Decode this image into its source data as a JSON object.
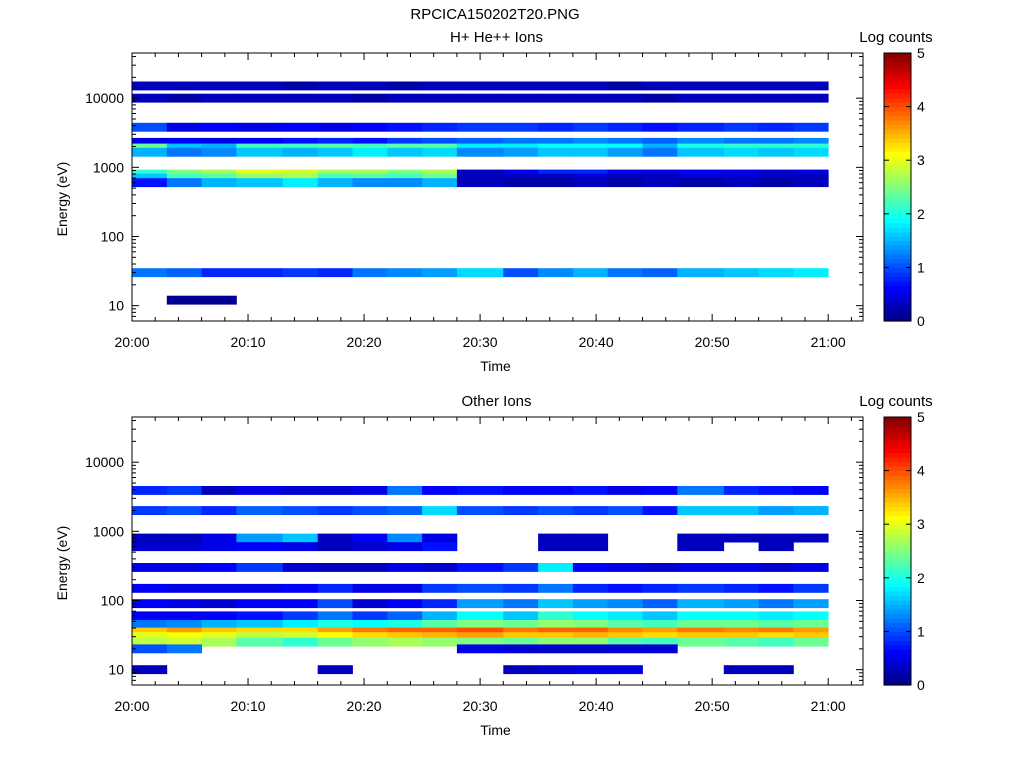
{
  "figure": {
    "file_title": "RPCICA150202T20.PNG",
    "panel_order": [
      "hia",
      "other"
    ]
  },
  "colors": {
    "frame": "#000000",
    "background": "#ffffff",
    "colormap": [
      "#000080",
      "#0000ff",
      "#0080ff",
      "#00ffff",
      "#80ff80",
      "#ffff00",
      "#ff8000",
      "#ff0000",
      "#800000"
    ]
  },
  "chart_data": [
    {
      "id": "hia",
      "type": "heatmap",
      "title": "H+ He++ Ions",
      "xlabel": "Time",
      "ylabel": "Energy (eV)",
      "xscale": "time",
      "yscale": "log",
      "xlim": [
        "20:00",
        "21:03"
      ],
      "ylim": [
        6,
        45000
      ],
      "x_ticks": [
        "20:00",
        "20:10",
        "20:20",
        "20:30",
        "20:40",
        "20:50",
        "21:00"
      ],
      "y_ticks": [
        10,
        100,
        1000,
        10000
      ],
      "y_tick_labels": [
        "10",
        "100",
        "1000",
        "10000"
      ],
      "colorbar": {
        "label": "Log counts",
        "min": 0,
        "max": 5,
        "ticks": [
          0,
          1,
          2,
          3,
          4,
          5
        ]
      },
      "time_bins": [
        "20:00",
        "20:03",
        "20:06",
        "20:09",
        "20:13",
        "20:16",
        "20:19",
        "20:22",
        "20:25",
        "20:28",
        "20:32",
        "20:35",
        "20:38",
        "20:41",
        "20:44",
        "20:47",
        "20:51",
        "20:54",
        "20:57",
        "21:00"
      ],
      "energy_bands_eV": [
        15000,
        10000,
        3800,
        2300,
        1900,
        1650,
        800,
        700,
        600,
        30,
        12
      ],
      "band_values_log_counts": [
        [
          0.3,
          0.3,
          0.3,
          0.3,
          0.2,
          0.3,
          0.3,
          0.2,
          0.3,
          0.3,
          0.3,
          0.3,
          0.3,
          0.2,
          0.3,
          0.3,
          0.3,
          0.3,
          0.3
        ],
        [
          0.3,
          0.2,
          0.3,
          0.3,
          0.3,
          0.3,
          0.2,
          0.3,
          0.3,
          0.3,
          0.3,
          0.3,
          0.3,
          0.3,
          0.2,
          0.3,
          0.3,
          0.3,
          0.3
        ],
        [
          1.0,
          0.5,
          0.6,
          0.5,
          0.6,
          0.5,
          0.6,
          0.7,
          0.8,
          0.9,
          0.9,
          0.8,
          0.9,
          0.8,
          0.7,
          0.8,
          0.9,
          0.8,
          0.9
        ],
        [
          0.5,
          0.6,
          0.5,
          0.6,
          0.7,
          0.8,
          0.7,
          0.9,
          1.0,
          1.1,
          1.2,
          1.2,
          1.3,
          1.2,
          1.1,
          1.3,
          1.2,
          1.2,
          1.3
        ],
        [
          2.4,
          1.6,
          1.5,
          2.2,
          2.2,
          2.3,
          2.2,
          2.3,
          2.3,
          1.8,
          1.8,
          1.9,
          1.9,
          1.9,
          1.5,
          2.0,
          2.1,
          2.1,
          2.1
        ],
        [
          1.5,
          1.2,
          1.3,
          1.6,
          1.5,
          1.6,
          1.8,
          1.6,
          1.7,
          1.3,
          1.4,
          1.6,
          1.6,
          1.4,
          1.2,
          1.6,
          1.7,
          1.6,
          1.7
        ],
        [
          2.1,
          2.5,
          2.7,
          3.0,
          2.9,
          2.7,
          2.7,
          2.5,
          2.7,
          0.3,
          0.6,
          0.8,
          0.8,
          0.6,
          0.5,
          0.6,
          0.5,
          0.4,
          0.5
        ],
        [
          1.6,
          2.2,
          2.3,
          2.6,
          2.7,
          2.2,
          2.3,
          2.2,
          2.4,
          0.3,
          0.3,
          0.3,
          0.4,
          0.3,
          0.3,
          0.4,
          0.4,
          0.3,
          0.3
        ],
        [
          0.7,
          1.2,
          1.5,
          1.6,
          1.8,
          1.5,
          1.3,
          1.3,
          1.5,
          0.3,
          0.2,
          0.2,
          0.3,
          0.2,
          0.3,
          0.2,
          0.3,
          0.2,
          0.3
        ],
        [
          1.2,
          1.1,
          0.8,
          0.8,
          0.9,
          0.8,
          1.2,
          1.3,
          1.4,
          1.7,
          1.0,
          1.3,
          1.5,
          1.2,
          1.1,
          1.5,
          1.6,
          1.7,
          1.8
        ],
        [
          0.0,
          0.1,
          0.1,
          0.0,
          0.0,
          0.0,
          0.0,
          0.0,
          0.0,
          0.0,
          0.0,
          0.0,
          0.0,
          0.0,
          0.0,
          0.0,
          0.0,
          0.0,
          0.0
        ]
      ]
    },
    {
      "id": "other",
      "type": "heatmap",
      "title": "Other Ions",
      "xlabel": "Time",
      "ylabel": "Energy (eV)",
      "xscale": "time",
      "yscale": "log",
      "xlim": [
        "20:00",
        "21:03"
      ],
      "ylim": [
        6,
        45000
      ],
      "x_ticks": [
        "20:00",
        "20:10",
        "20:20",
        "20:30",
        "20:40",
        "20:50",
        "21:00"
      ],
      "y_ticks": [
        10,
        100,
        1000,
        10000
      ],
      "y_tick_labels": [
        "10",
        "100",
        "1000",
        "10000"
      ],
      "colorbar": {
        "label": "Log counts",
        "min": 0,
        "max": 5,
        "ticks": [
          0,
          1,
          2,
          3,
          4,
          5
        ]
      },
      "time_bins": [
        "20:00",
        "20:03",
        "20:06",
        "20:09",
        "20:13",
        "20:16",
        "20:19",
        "20:22",
        "20:25",
        "20:28",
        "20:32",
        "20:35",
        "20:38",
        "20:41",
        "20:44",
        "20:47",
        "20:51",
        "20:54",
        "20:57",
        "21:00"
      ],
      "energy_bands_eV": [
        3900,
        2000,
        800,
        600,
        300,
        150,
        90,
        60,
        45,
        35,
        30,
        25,
        20,
        10
      ],
      "band_values_log_counts": [
        [
          0.8,
          0.9,
          0.3,
          0.5,
          0.4,
          0.4,
          0.5,
          1.2,
          0.6,
          0.7,
          0.6,
          0.6,
          0.7,
          0.5,
          0.6,
          1.2,
          0.8,
          0.7,
          0.6
        ],
        [
          0.9,
          1.0,
          0.8,
          1.1,
          1.0,
          0.9,
          1.0,
          1.1,
          1.7,
          1.0,
          0.9,
          1.0,
          0.9,
          1.0,
          0.7,
          1.6,
          1.6,
          1.4,
          1.5
        ],
        [
          0.3,
          0.3,
          0.5,
          1.4,
          1.6,
          0.3,
          0.6,
          1.3,
          0.5,
          0.0,
          0.0,
          0.3,
          0.3,
          0.0,
          0.0,
          0.3,
          0.3,
          0.3,
          0.3
        ],
        [
          0.4,
          0.4,
          0.5,
          0.6,
          0.5,
          0.3,
          0.4,
          0.5,
          0.7,
          0.0,
          0.0,
          0.3,
          0.3,
          0.0,
          0.0,
          0.3,
          0.0,
          0.3,
          0.0
        ],
        [
          0.5,
          0.5,
          0.6,
          0.9,
          0.4,
          0.3,
          0.3,
          0.5,
          0.4,
          0.7,
          0.9,
          1.8,
          0.6,
          0.5,
          0.4,
          0.5,
          0.5,
          0.4,
          0.5
        ],
        [
          0.6,
          0.5,
          0.5,
          0.5,
          0.6,
          0.8,
          0.5,
          0.5,
          0.9,
          1.0,
          0.9,
          1.2,
          0.8,
          0.7,
          0.8,
          0.9,
          0.8,
          0.7,
          0.9
        ],
        [
          0.6,
          0.5,
          0.4,
          0.6,
          0.6,
          1.0,
          0.4,
          0.6,
          0.8,
          1.4,
          1.2,
          1.6,
          1.4,
          1.3,
          1.1,
          1.5,
          1.4,
          1.2,
          1.4
        ],
        [
          0.6,
          0.6,
          0.6,
          0.7,
          0.9,
          1.2,
          0.9,
          1.1,
          1.5,
          1.9,
          1.6,
          2.1,
          1.9,
          1.8,
          1.6,
          1.9,
          1.9,
          1.8,
          1.9
        ],
        [
          1.2,
          1.3,
          1.5,
          1.6,
          1.8,
          2.0,
          1.9,
          2.0,
          2.3,
          2.5,
          2.4,
          2.6,
          2.5,
          2.3,
          2.2,
          2.4,
          2.4,
          2.3,
          2.4
        ],
        [
          3.4,
          3.6,
          3.4,
          3.3,
          3.3,
          3.6,
          3.8,
          3.9,
          3.9,
          4.0,
          3.8,
          3.9,
          3.9,
          3.7,
          3.6,
          3.8,
          3.7,
          3.8,
          3.6
        ],
        [
          3.0,
          3.1,
          3.0,
          2.8,
          2.9,
          3.1,
          3.3,
          3.4,
          3.5,
          3.6,
          3.4,
          3.4,
          3.5,
          3.4,
          3.3,
          3.4,
          3.4,
          3.3,
          3.4
        ],
        [
          2.8,
          2.9,
          2.7,
          2.3,
          2.1,
          2.4,
          2.6,
          2.7,
          2.6,
          2.5,
          2.4,
          2.6,
          2.6,
          2.3,
          2.2,
          2.4,
          2.3,
          2.2,
          2.4
        ],
        [
          1.0,
          1.2,
          0.0,
          0.0,
          0.0,
          0.0,
          0.0,
          0.0,
          0.0,
          0.5,
          0.4,
          0.4,
          0.4,
          0.4,
          0.4,
          0.0,
          0.0,
          0.0,
          0.0
        ],
        [
          0.3,
          0.0,
          0.0,
          0.0,
          0.0,
          0.3,
          0.0,
          0.0,
          0.0,
          0.0,
          0.3,
          0.4,
          0.5,
          0.5,
          0.0,
          0.0,
          0.3,
          0.3,
          0.0
        ]
      ]
    }
  ]
}
